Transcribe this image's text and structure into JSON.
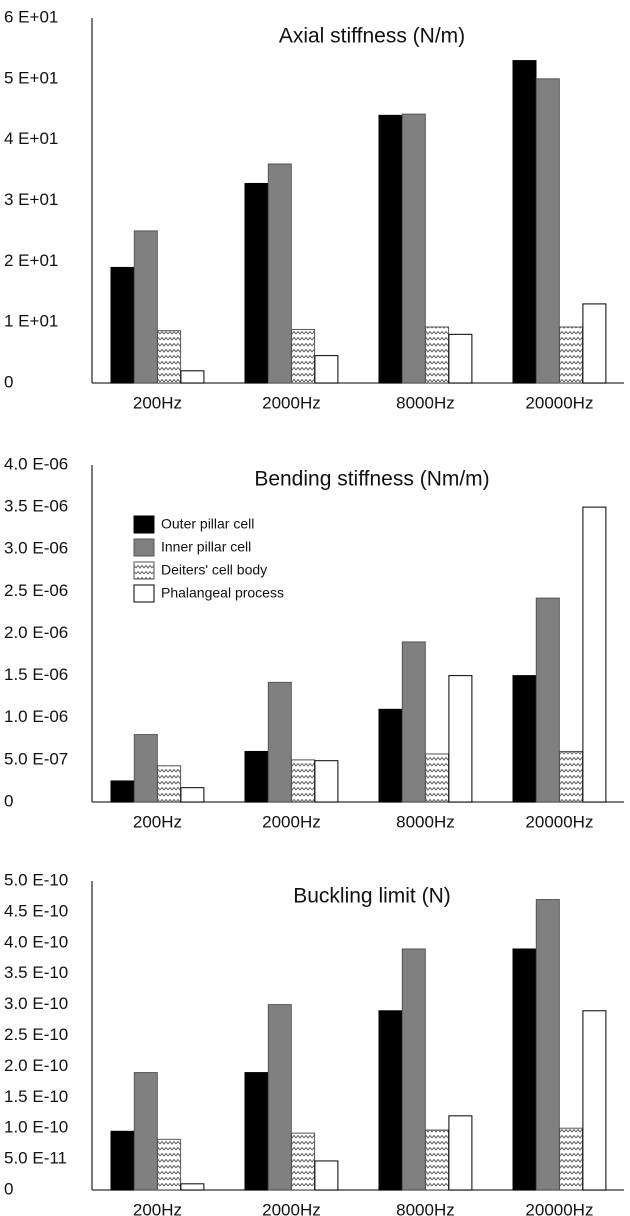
{
  "chart_data": [
    {
      "type": "bar",
      "title": "Axial stiffness (N/m)",
      "categories": [
        "200Hz",
        "2000Hz",
        "8000Hz",
        "20000Hz"
      ],
      "ylim": [
        0,
        60
      ],
      "y_ticks": [
        0,
        10,
        20,
        30,
        40,
        50,
        60
      ],
      "y_tick_labels": [
        "0",
        "1 E+01",
        "2 E+01",
        "3 E+01",
        "4 E+01",
        "5 E+01",
        "6 E+01"
      ],
      "series": [
        {
          "name": "Outer pillar cell",
          "values": [
            19,
            32.8,
            44,
            53
          ]
        },
        {
          "name": "Inner pillar cell",
          "values": [
            25,
            36,
            44.2,
            50
          ]
        },
        {
          "name": "Deiters' cell body",
          "values": [
            8.6,
            8.8,
            9.2,
            9.2
          ]
        },
        {
          "name": "Phalangeal process",
          "values": [
            2,
            4.5,
            8,
            13
          ]
        }
      ],
      "legend": false
    },
    {
      "type": "bar",
      "title": "Bending stiffness (Nm/m)",
      "categories": [
        "200Hz",
        "2000Hz",
        "8000Hz",
        "20000Hz"
      ],
      "ylim": [
        0,
        4e-06
      ],
      "y_ticks": [
        0,
        5e-07,
        1e-06,
        1.5e-06,
        2e-06,
        2.5e-06,
        3e-06,
        3.5e-06,
        4e-06
      ],
      "y_tick_labels": [
        "0",
        "5.0 E-07",
        "1.0 E-06",
        "1.5 E-06",
        "2.0 E-06",
        "2.5 E-06",
        "3.0 E-06",
        "3.5 E-06",
        "4.0 E-06"
      ],
      "series": [
        {
          "name": "Outer pillar cell",
          "values": [
            2.5e-07,
            6e-07,
            1.1e-06,
            1.5e-06
          ]
        },
        {
          "name": "Inner pillar cell",
          "values": [
            8e-07,
            1.42e-06,
            1.9e-06,
            2.42e-06
          ]
        },
        {
          "name": "Deiters' cell body",
          "values": [
            4.3e-07,
            5e-07,
            5.7e-07,
            6e-07
          ]
        },
        {
          "name": "Phalangeal process",
          "values": [
            1.7e-07,
            4.9e-07,
            1.5e-06,
            3.5e-06
          ]
        }
      ],
      "legend": true,
      "legend_position": "top-left"
    },
    {
      "type": "bar",
      "title": "Buckling limit (N)",
      "categories": [
        "200Hz",
        "2000Hz",
        "8000Hz",
        "20000Hz"
      ],
      "ylim": [
        0,
        5e-10
      ],
      "y_ticks": [
        0,
        5e-11,
        1e-10,
        1.5e-10,
        2e-10,
        2.5e-10,
        3e-10,
        3.5e-10,
        4e-10,
        4.5e-10,
        5e-10
      ],
      "y_tick_labels": [
        "0",
        "5.0 E-11",
        "1.0 E-10",
        "1.5 E-10",
        "2.0 E-10",
        "2.5 E-10",
        "3.0 E-10",
        "3.5 E-10",
        "4.0 E-10",
        "4.5 E-10",
        "5.0 E-10"
      ],
      "series": [
        {
          "name": "Outer pillar cell",
          "values": [
            9.5e-11,
            1.9e-10,
            2.9e-10,
            3.9e-10
          ]
        },
        {
          "name": "Inner pillar cell",
          "values": [
            1.9e-10,
            3e-10,
            3.9e-10,
            4.7e-10
          ]
        },
        {
          "name": "Deiters' cell body",
          "values": [
            8.2e-11,
            9.2e-11,
            9.7e-11,
            1e-10
          ]
        },
        {
          "name": "Phalangeal process",
          "values": [
            1e-11,
            4.7e-11,
            1.2e-10,
            2.9e-10
          ]
        }
      ],
      "legend": false
    }
  ],
  "colors": {
    "outer_pillar": "#000000",
    "inner_pillar": "#808080",
    "deiters": "#ffffff",
    "phalangeal": "#ffffff",
    "axis": "#333333"
  }
}
